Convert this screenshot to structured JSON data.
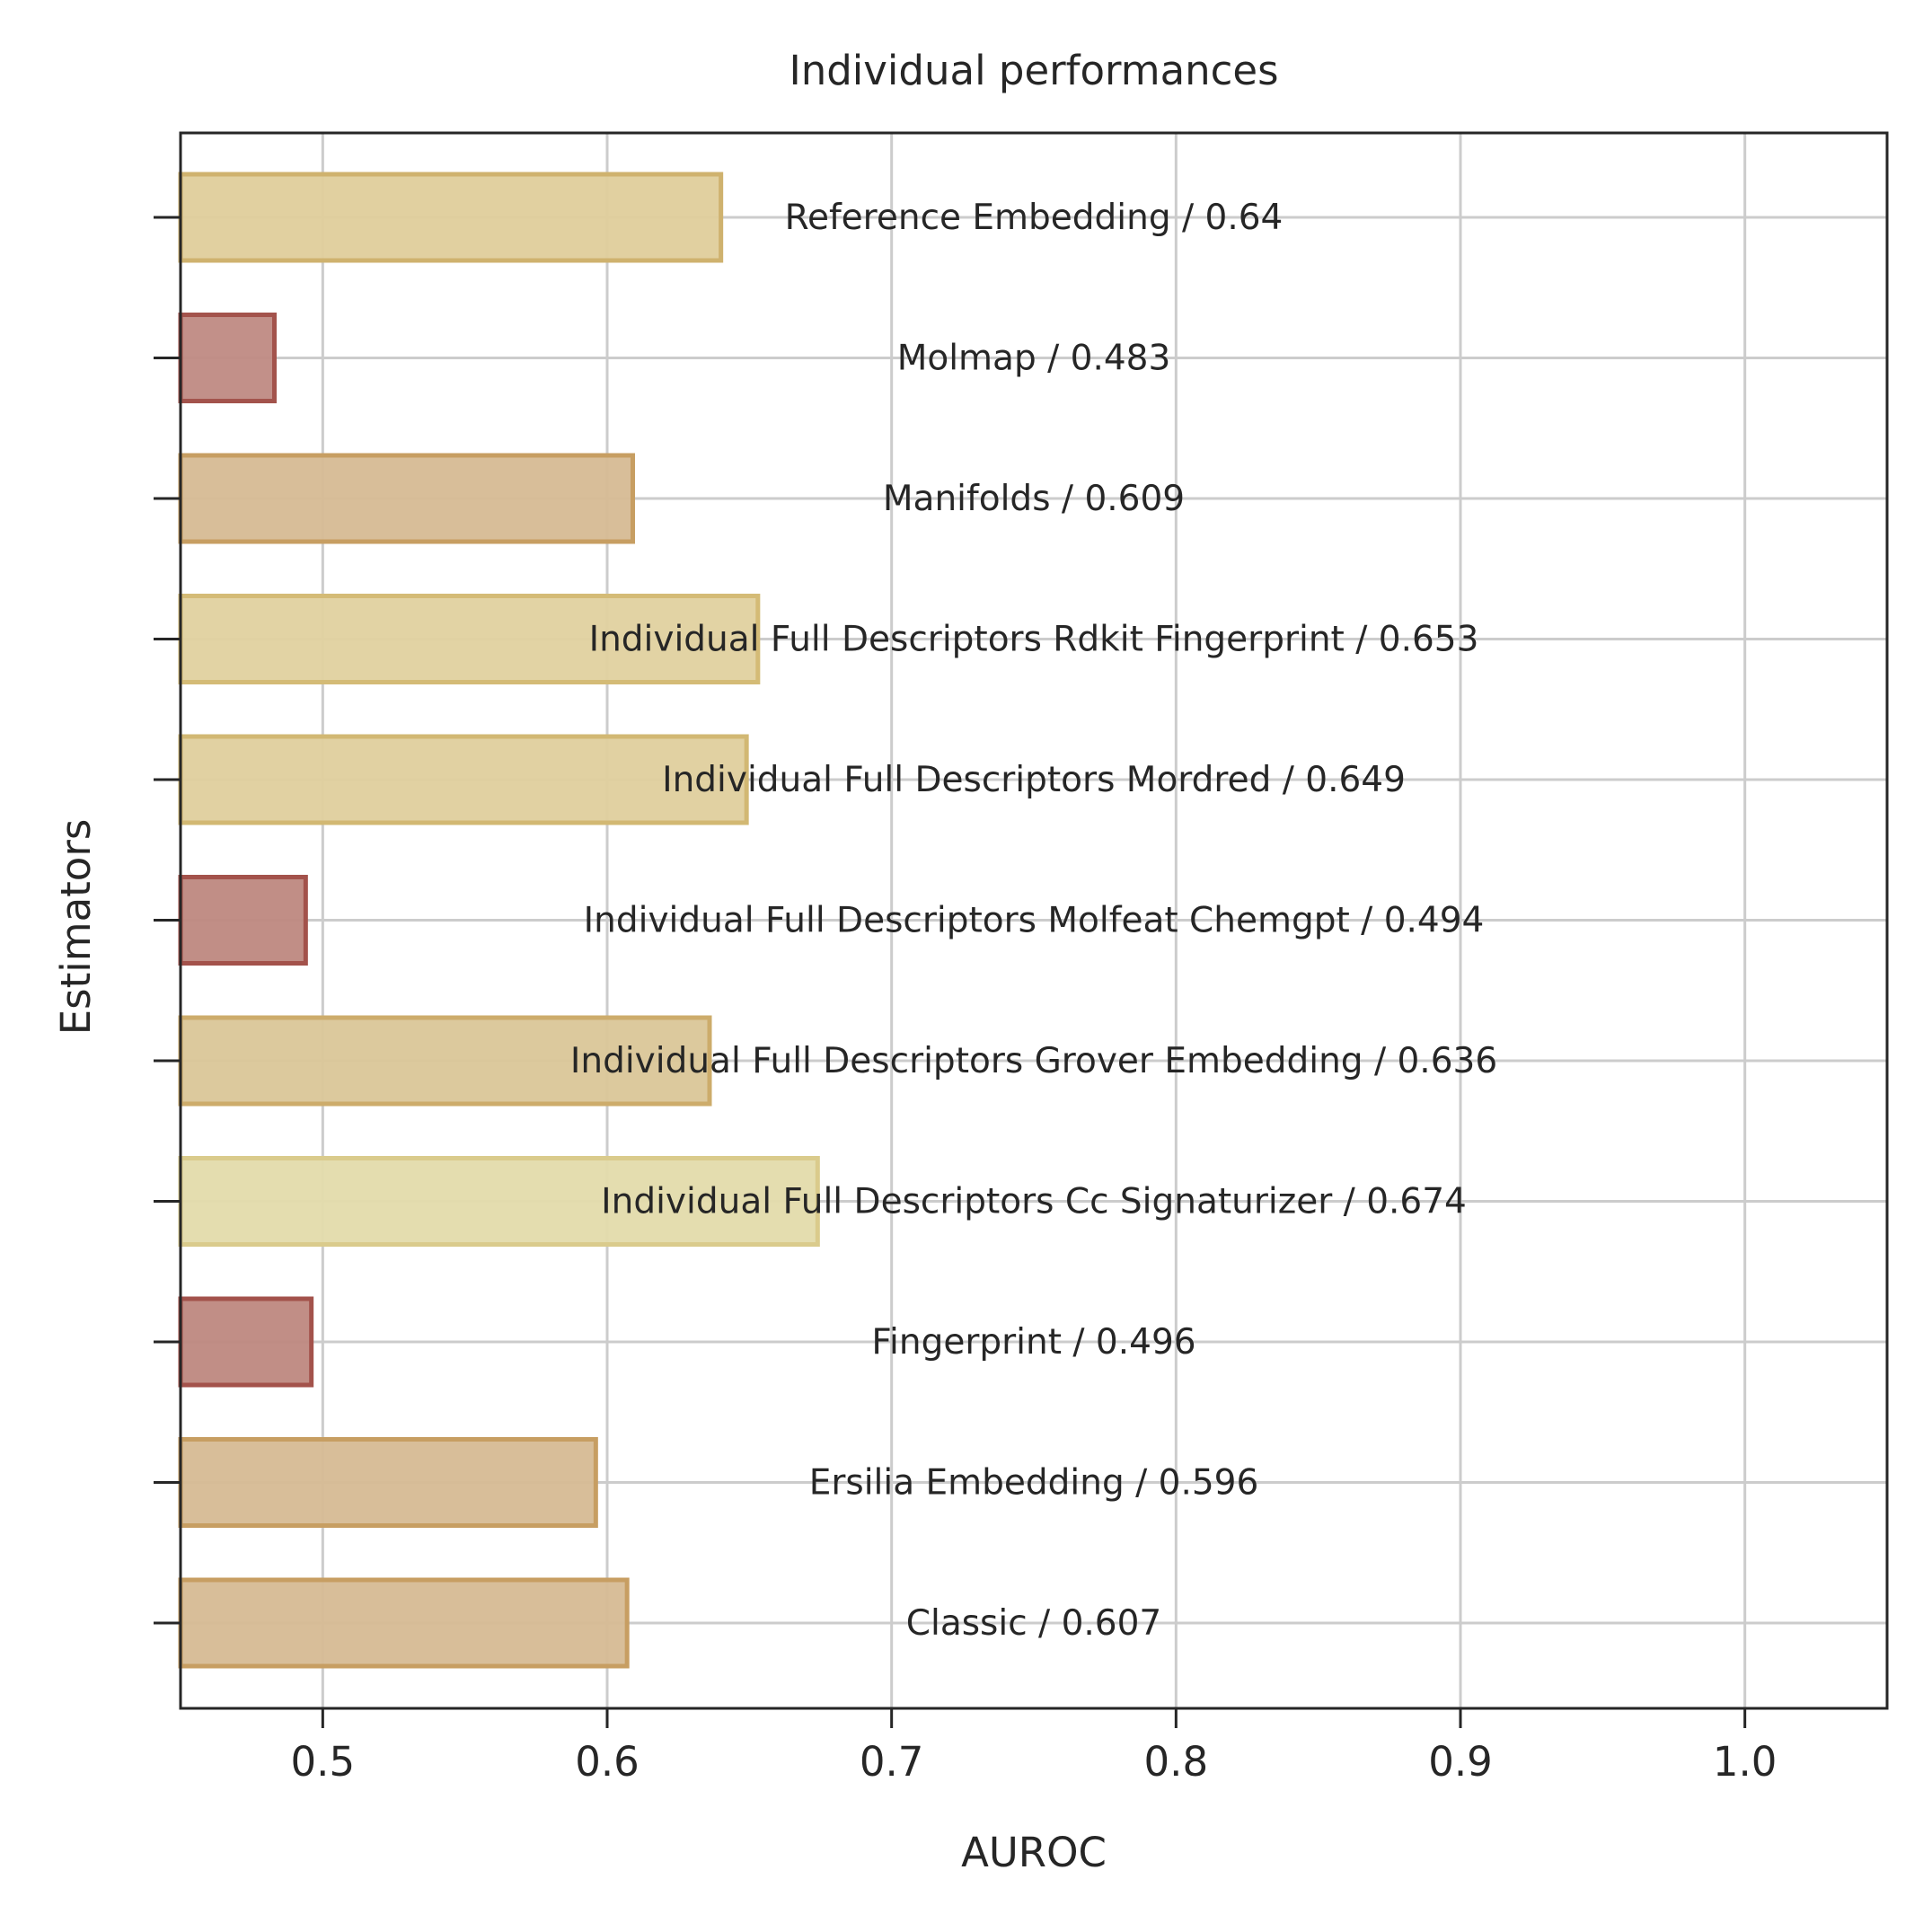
{
  "chart_data": {
    "type": "bar",
    "orientation": "horizontal",
    "title": "Individual performances",
    "xlabel": "AUROC",
    "ylabel": "Estimators",
    "xlim": [
      0.45,
      1.05
    ],
    "xticks": [
      "0.5",
      "0.6",
      "0.7",
      "0.8",
      "0.9",
      "1.0"
    ],
    "grid": true,
    "legend": "none",
    "bars": [
      {
        "category": "Reference Embedding",
        "value": 0.64,
        "label": "Reference Embedding / 0.64",
        "fill": "#dfcd9b",
        "stroke": "#cfb26e"
      },
      {
        "category": "Molmap",
        "value": 0.483,
        "label": "Molmap / 0.483",
        "fill": "#bf8a83",
        "stroke": "#a3534c"
      },
      {
        "category": "Manifolds",
        "value": 0.609,
        "label": "Manifolds / 0.609",
        "fill": "#d6bb93",
        "stroke": "#c79e62"
      },
      {
        "category": "Individual Full Descriptors Rdkit Fingerprint",
        "value": 0.653,
        "label": "Individual Full Descriptors Rdkit Fingerprint / 0.653",
        "fill": "#e0d19f",
        "stroke": "#d4bb76"
      },
      {
        "category": "Individual Full Descriptors Mordred",
        "value": 0.649,
        "label": "Individual Full Descriptors Mordred / 0.649",
        "fill": "#dfcf9d",
        "stroke": "#d2b873"
      },
      {
        "category": "Individual Full Descriptors Molfeat Chemgpt",
        "value": 0.494,
        "label": "Individual Full Descriptors Molfeat Chemgpt / 0.494",
        "fill": "#be8880",
        "stroke": "#a3524b"
      },
      {
        "category": "Individual Full Descriptors Grover Embedding",
        "value": 0.636,
        "label": "Individual Full Descriptors Grover Embedding / 0.636",
        "fill": "#dac698",
        "stroke": "#cdac6b"
      },
      {
        "category": "Individual Full Descriptors Cc Signaturizer",
        "value": 0.674,
        "label": "Individual Full Descriptors Cc Signaturizer / 0.674",
        "fill": "#e3dbab",
        "stroke": "#dacb8c"
      },
      {
        "category": "Fingerprint",
        "value": 0.496,
        "label": "Fingerprint / 0.496",
        "fill": "#be8880",
        "stroke": "#a3524b"
      },
      {
        "category": "Ersilia Embedding",
        "value": 0.596,
        "label": "Ersilia Embedding / 0.596",
        "fill": "#d6bb93",
        "stroke": "#c79e62"
      },
      {
        "category": "Classic",
        "value": 0.607,
        "label": "Classic / 0.607",
        "fill": "#d6bb93",
        "stroke": "#c79e62"
      }
    ]
  }
}
